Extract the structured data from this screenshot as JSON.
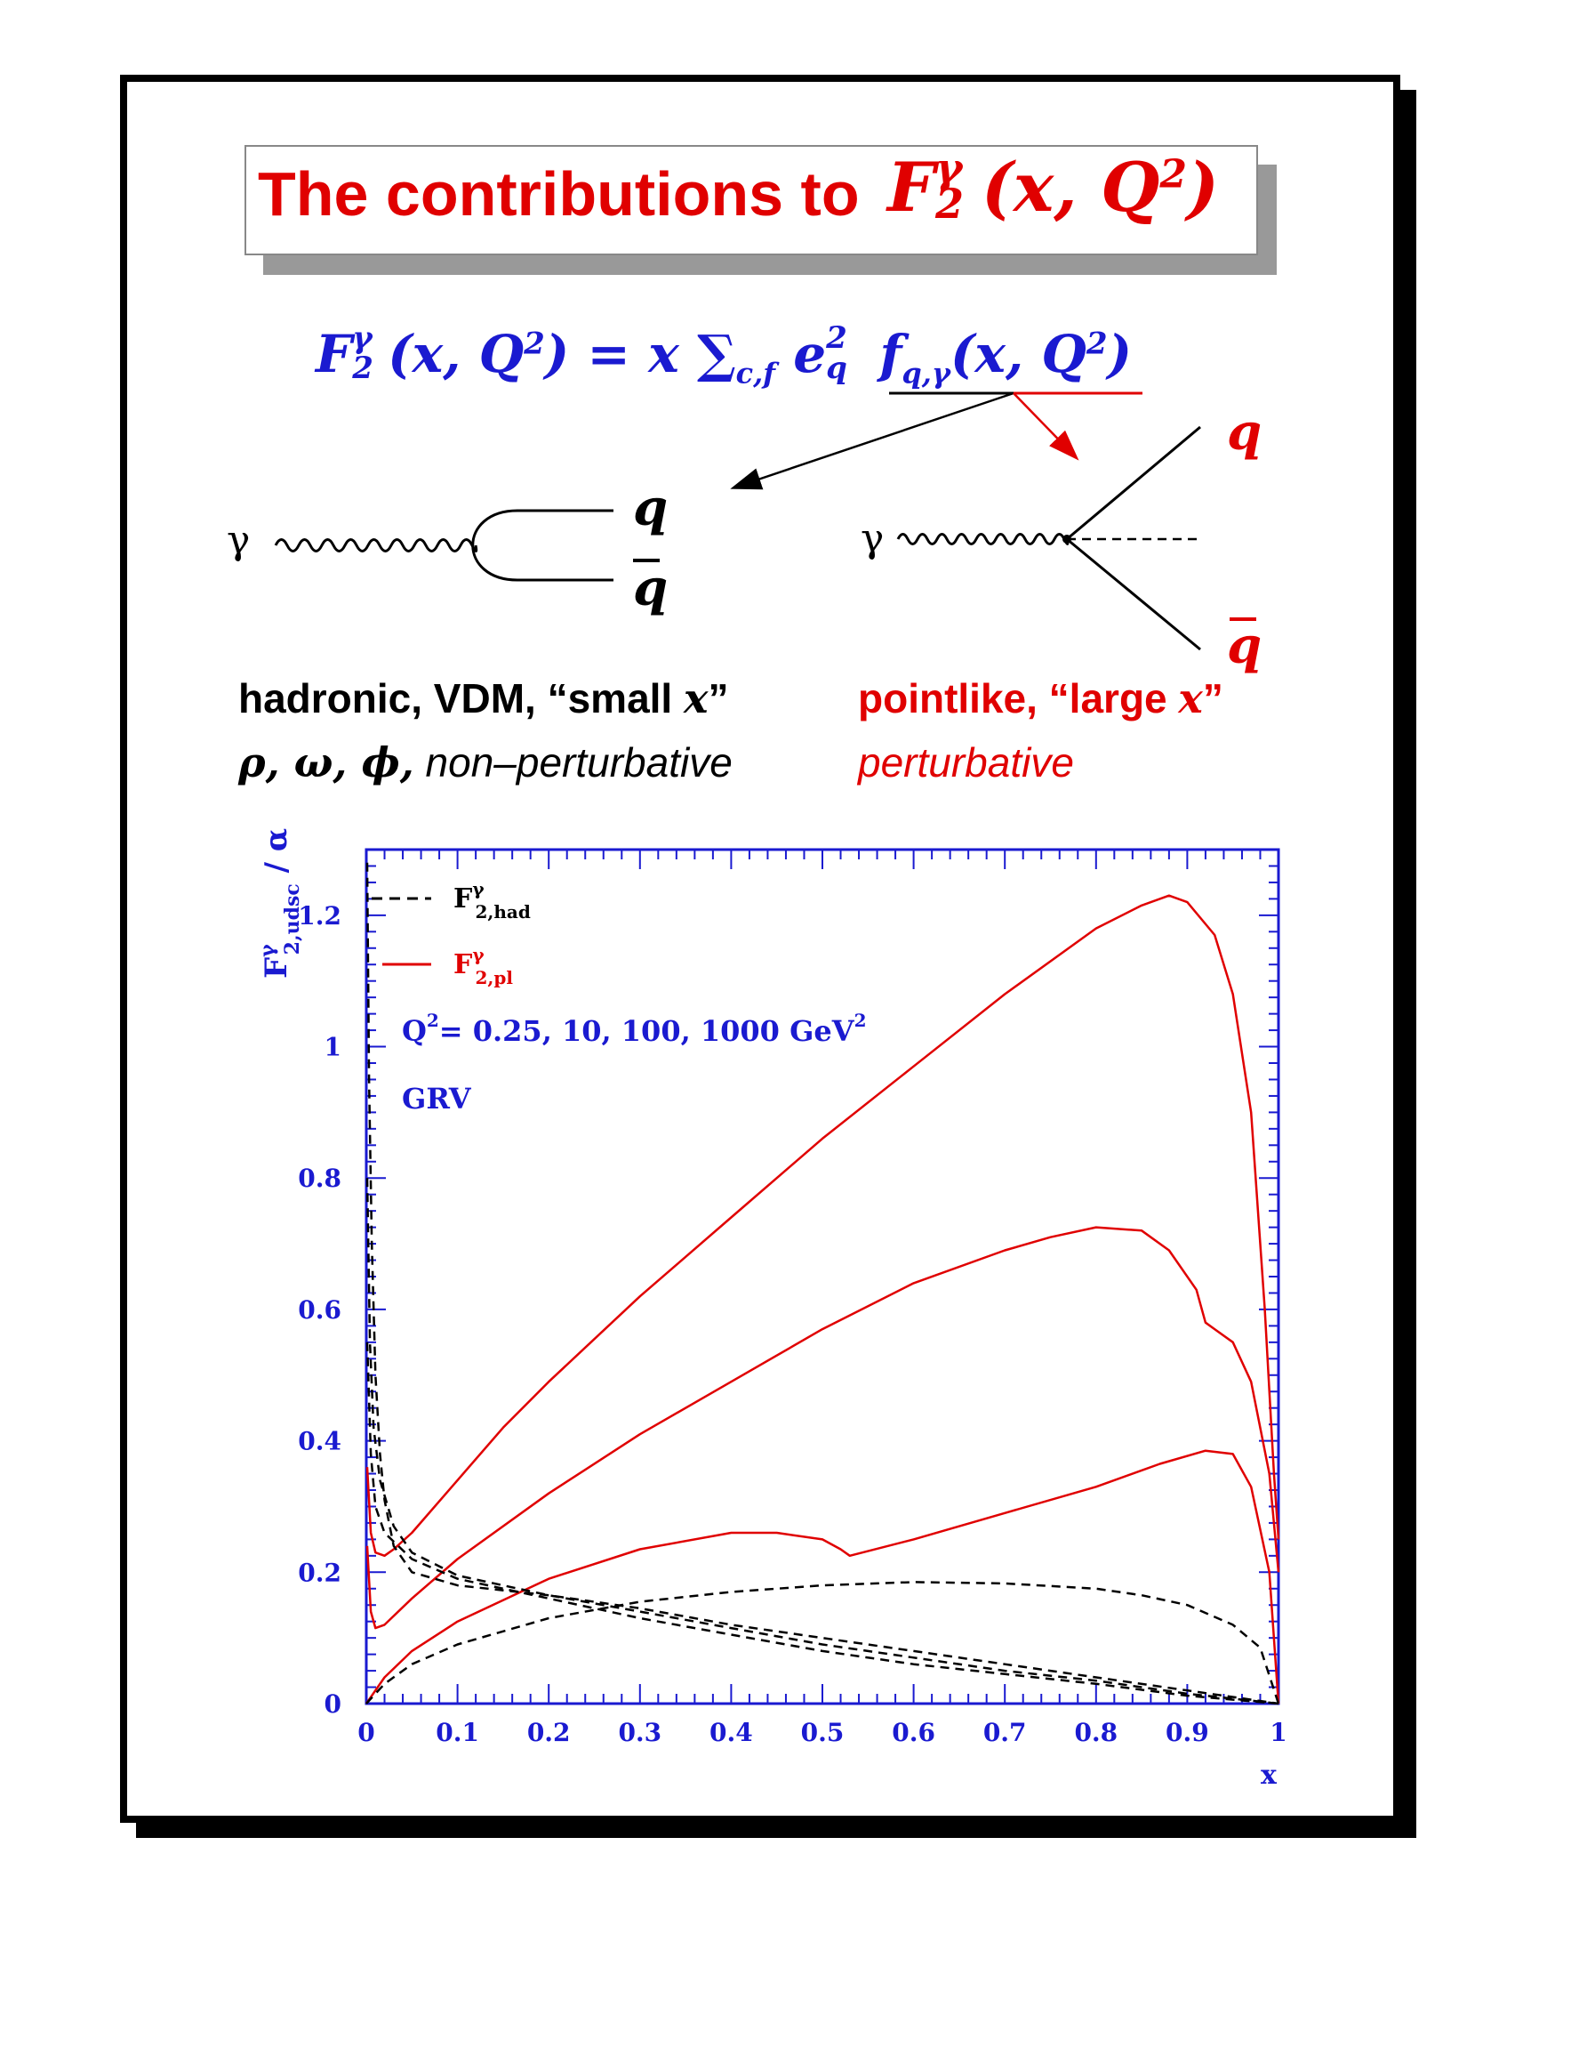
{
  "title": {
    "text": "The contributions to",
    "math_base": "F",
    "math_sup": "γ",
    "math_sub": "2",
    "math_args": "(x, Q",
    "math_args_sup": "2",
    "math_args_end": ")"
  },
  "formula": {
    "lhs_base": "F",
    "lhs_sup": "γ",
    "lhs_sub": "2",
    "lhs_args": "(x, Q",
    "lhs_args_sup": "2",
    "lhs_args_end": ") = x ∑",
    "sum_sub": "c,f",
    "charge": " e",
    "charge_sup": "2",
    "charge_sub": "q",
    "pdf": " f",
    "pdf_sub": "q,γ",
    "pdf_args": "(x, Q",
    "pdf_args_sup": "2",
    "pdf_args_end": ")"
  },
  "diagrams": {
    "left_photon": "γ",
    "left_quark": "q",
    "left_antiquark": "q",
    "right_photon": "γ",
    "right_quark": "q",
    "right_antiquark": "q"
  },
  "labels": {
    "hadronic_line": "hadronic, VDM, “small",
    "hadronic_x": "x",
    "hadronic_end": "”",
    "hadronic_greek": "ρ, ω, ϕ,",
    "hadronic_desc": " non–perturbative",
    "pointlike_line": "pointlike, “large",
    "pointlike_x": "x",
    "pointlike_end": "”",
    "pointlike_desc": "perturbative"
  },
  "colors": {
    "red": "#e00000",
    "blue": "#1a1ad0",
    "black": "#000000"
  },
  "chart_data": {
    "type": "line",
    "ylabel": "F^γ_2,udsc / α",
    "ylabel_parts": {
      "base": "F",
      "sup": "γ",
      "sub": "2,udsc",
      "rest": " / α"
    },
    "xlabel": "x",
    "xlim": [
      0,
      1
    ],
    "ylim": [
      0,
      1.3
    ],
    "xticks": [
      "0",
      "0.1",
      "0.2",
      "0.3",
      "0.4",
      "0.5",
      "0.6",
      "0.7",
      "0.8",
      "0.9",
      "1"
    ],
    "yticks": [
      "0",
      "0.2",
      "0.4",
      "0.6",
      "0.8",
      "1",
      "1.2"
    ],
    "legend": [
      {
        "name": "F^γ_2,had",
        "base": "F",
        "sup": "γ",
        "sub": "2,had",
        "style": "dashed",
        "color": "#000000"
      },
      {
        "name": "F^γ_2,pl",
        "base": "F",
        "sup": "γ",
        "sub": "2,pl",
        "style": "solid",
        "color": "#e00000"
      }
    ],
    "annotations": {
      "q2_base": "Q",
      "q2_sup": "2",
      "q2_text": "= 0.25, 10, 100, 1000 GeV",
      "q2_unit_sup": "2",
      "source": "GRV"
    },
    "series": [
      {
        "kind": "pointlike",
        "color": "#e00000",
        "dash": false,
        "points": [
          [
            0.001,
            0.36
          ],
          [
            0.005,
            0.26
          ],
          [
            0.01,
            0.23
          ],
          [
            0.02,
            0.225
          ],
          [
            0.03,
            0.235
          ],
          [
            0.05,
            0.26
          ],
          [
            0.1,
            0.34
          ],
          [
            0.15,
            0.42
          ],
          [
            0.2,
            0.49
          ],
          [
            0.3,
            0.62
          ],
          [
            0.4,
            0.74
          ],
          [
            0.5,
            0.86
          ],
          [
            0.6,
            0.97
          ],
          [
            0.7,
            1.08
          ],
          [
            0.8,
            1.18
          ],
          [
            0.85,
            1.215
          ],
          [
            0.88,
            1.23
          ],
          [
            0.9,
            1.22
          ],
          [
            0.93,
            1.17
          ],
          [
            0.95,
            1.08
          ],
          [
            0.97,
            0.9
          ],
          [
            0.985,
            0.6
          ],
          [
            0.995,
            0.35
          ],
          [
            1.0,
            0.25
          ]
        ]
      },
      {
        "kind": "pointlike",
        "color": "#e00000",
        "dash": false,
        "points": [
          [
            0.001,
            0.24
          ],
          [
            0.005,
            0.14
          ],
          [
            0.01,
            0.115
          ],
          [
            0.02,
            0.12
          ],
          [
            0.05,
            0.16
          ],
          [
            0.1,
            0.22
          ],
          [
            0.2,
            0.32
          ],
          [
            0.3,
            0.41
          ],
          [
            0.4,
            0.49
          ],
          [
            0.5,
            0.57
          ],
          [
            0.6,
            0.64
          ],
          [
            0.7,
            0.69
          ],
          [
            0.75,
            0.71
          ],
          [
            0.8,
            0.725
          ],
          [
            0.85,
            0.72
          ],
          [
            0.88,
            0.69
          ],
          [
            0.91,
            0.63
          ],
          [
            0.92,
            0.58
          ],
          [
            0.93,
            0.57
          ],
          [
            0.95,
            0.55
          ],
          [
            0.97,
            0.49
          ],
          [
            0.99,
            0.35
          ],
          [
            1.0,
            0.2
          ]
        ]
      },
      {
        "kind": "pointlike",
        "color": "#e00000",
        "dash": false,
        "points": [
          [
            0.0,
            0.0
          ],
          [
            0.02,
            0.04
          ],
          [
            0.05,
            0.08
          ],
          [
            0.1,
            0.125
          ],
          [
            0.2,
            0.19
          ],
          [
            0.3,
            0.235
          ],
          [
            0.4,
            0.26
          ],
          [
            0.45,
            0.26
          ],
          [
            0.5,
            0.25
          ],
          [
            0.52,
            0.235
          ],
          [
            0.53,
            0.225
          ],
          [
            0.6,
            0.25
          ],
          [
            0.7,
            0.29
          ],
          [
            0.8,
            0.33
          ],
          [
            0.87,
            0.365
          ],
          [
            0.92,
            0.385
          ],
          [
            0.95,
            0.38
          ],
          [
            0.97,
            0.33
          ],
          [
            0.99,
            0.2
          ],
          [
            1.0,
            0.0
          ]
        ]
      },
      {
        "kind": "hadronic",
        "color": "#000000",
        "dash": true,
        "points": [
          [
            0.001,
            1.28
          ],
          [
            0.003,
            0.95
          ],
          [
            0.006,
            0.7
          ],
          [
            0.01,
            0.5
          ],
          [
            0.015,
            0.38
          ],
          [
            0.02,
            0.31
          ],
          [
            0.03,
            0.24
          ],
          [
            0.05,
            0.2
          ],
          [
            0.1,
            0.18
          ],
          [
            0.2,
            0.165
          ],
          [
            0.3,
            0.145
          ],
          [
            0.4,
            0.12
          ],
          [
            0.5,
            0.1
          ],
          [
            0.6,
            0.08
          ],
          [
            0.7,
            0.06
          ],
          [
            0.8,
            0.04
          ],
          [
            0.9,
            0.02
          ],
          [
            1.0,
            0.0
          ]
        ]
      },
      {
        "kind": "hadronic",
        "color": "#000000",
        "dash": true,
        "points": [
          [
            0.001,
            0.8
          ],
          [
            0.004,
            0.55
          ],
          [
            0.008,
            0.42
          ],
          [
            0.015,
            0.34
          ],
          [
            0.03,
            0.27
          ],
          [
            0.05,
            0.23
          ],
          [
            0.1,
            0.195
          ],
          [
            0.2,
            0.165
          ],
          [
            0.3,
            0.14
          ],
          [
            0.4,
            0.115
          ],
          [
            0.5,
            0.09
          ],
          [
            0.6,
            0.07
          ],
          [
            0.7,
            0.05
          ],
          [
            0.8,
            0.035
          ],
          [
            0.9,
            0.015
          ],
          [
            1.0,
            0.0
          ]
        ]
      },
      {
        "kind": "hadronic",
        "color": "#000000",
        "dash": true,
        "points": [
          [
            0.001,
            0.55
          ],
          [
            0.005,
            0.38
          ],
          [
            0.01,
            0.3
          ],
          [
            0.02,
            0.26
          ],
          [
            0.05,
            0.22
          ],
          [
            0.1,
            0.19
          ],
          [
            0.2,
            0.16
          ],
          [
            0.3,
            0.13
          ],
          [
            0.4,
            0.105
          ],
          [
            0.5,
            0.08
          ],
          [
            0.6,
            0.06
          ],
          [
            0.7,
            0.045
          ],
          [
            0.8,
            0.03
          ],
          [
            0.9,
            0.012
          ],
          [
            1.0,
            0.0
          ]
        ]
      },
      {
        "kind": "hadronic",
        "color": "#000000",
        "dash": true,
        "points": [
          [
            0.0,
            0.0
          ],
          [
            0.02,
            0.03
          ],
          [
            0.05,
            0.06
          ],
          [
            0.1,
            0.09
          ],
          [
            0.2,
            0.13
          ],
          [
            0.3,
            0.155
          ],
          [
            0.4,
            0.17
          ],
          [
            0.5,
            0.18
          ],
          [
            0.6,
            0.185
          ],
          [
            0.7,
            0.183
          ],
          [
            0.8,
            0.175
          ],
          [
            0.85,
            0.165
          ],
          [
            0.9,
            0.15
          ],
          [
            0.95,
            0.12
          ],
          [
            0.98,
            0.085
          ],
          [
            1.0,
            0.0
          ]
        ]
      }
    ]
  }
}
